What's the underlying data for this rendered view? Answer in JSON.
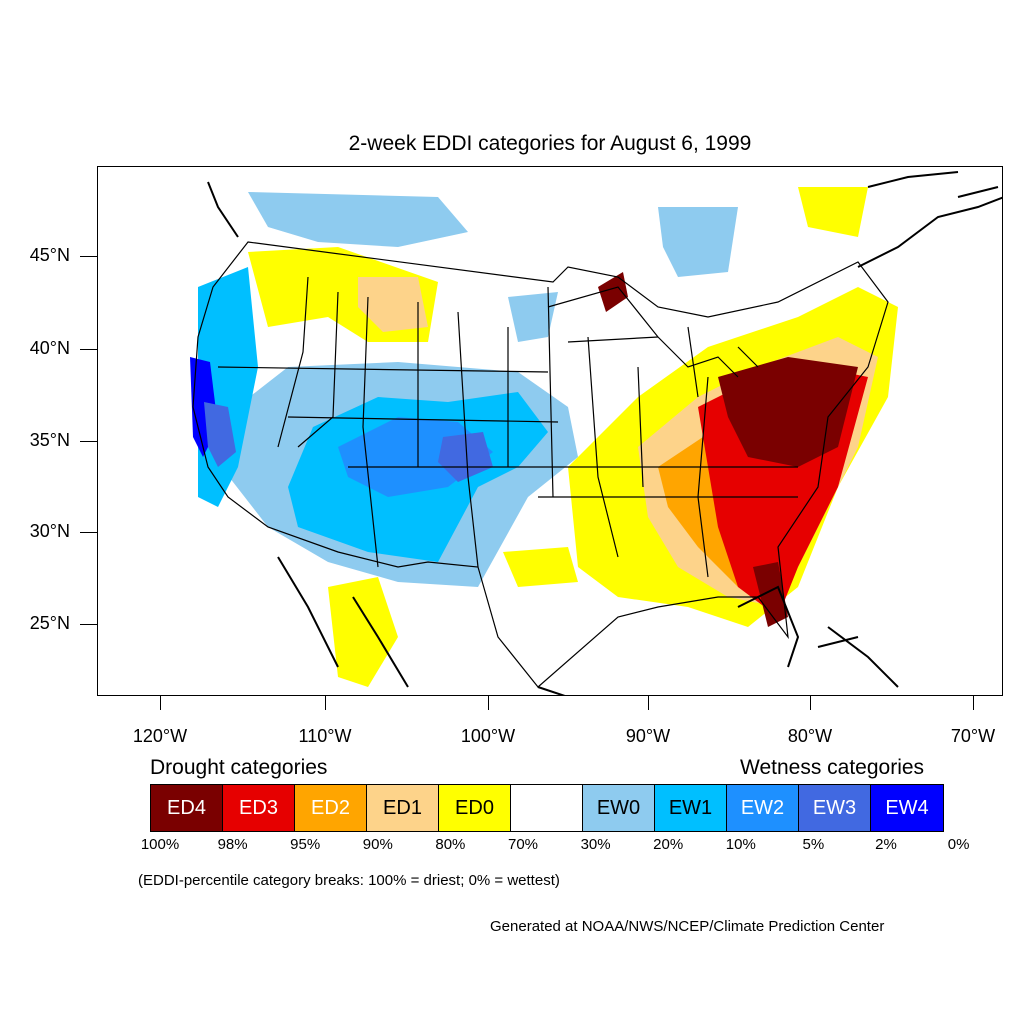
{
  "title": "2-week EDDI categories for August 6, 1999",
  "lat_labels": [
    "45°N",
    "40°N",
    "35°N",
    "30°N",
    "25°N"
  ],
  "lon_labels": [
    "120°W",
    "110°W",
    "100°W",
    "90°W",
    "80°W",
    "70°W"
  ],
  "legend": {
    "drought_heading": "Drought categories",
    "wetness_heading": "Wetness categories",
    "categories": [
      {
        "label": "ED4",
        "color": "#7a0000",
        "text_color": "#ffffff"
      },
      {
        "label": "ED3",
        "color": "#e60000",
        "text_color": "#ffffff"
      },
      {
        "label": "ED2",
        "color": "#ffa500",
        "text_color": "#ffffff"
      },
      {
        "label": "ED1",
        "color": "#fdd38a",
        "text_color": "#000000"
      },
      {
        "label": "ED0",
        "color": "#ffff00",
        "text_color": "#000000"
      },
      {
        "label": "",
        "color": "#ffffff",
        "text_color": "#000000"
      },
      {
        "label": "EW0",
        "color": "#8ecbef",
        "text_color": "#000000"
      },
      {
        "label": "EW1",
        "color": "#00bfff",
        "text_color": "#000000"
      },
      {
        "label": "EW2",
        "color": "#1e90ff",
        "text_color": "#ffffff"
      },
      {
        "label": "EW3",
        "color": "#4169e1",
        "text_color": "#ffffff"
      },
      {
        "label": "EW4",
        "color": "#0000ff",
        "text_color": "#ffffff"
      }
    ],
    "percentiles": [
      "100%",
      "98%",
      "95%",
      "90%",
      "80%",
      "70%",
      "30%",
      "20%",
      "10%",
      "5%",
      "2%",
      "0%"
    ]
  },
  "note": "(EDDI-percentile category breaks: 100% = driest; 0% = wettest)",
  "credit": "Generated at NOAA/NWS/NCEP/Climate Prediction Center"
}
